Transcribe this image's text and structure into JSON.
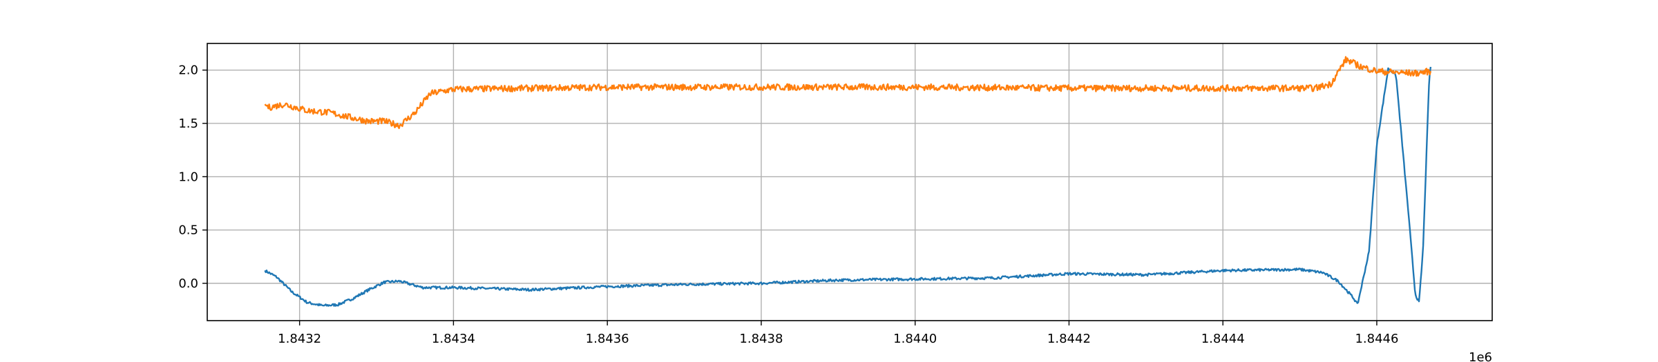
{
  "chart_data": {
    "type": "line",
    "title": "",
    "xlabel": "",
    "ylabel": "",
    "x_offset_label": "1e6",
    "xlim": [
      1.84308,
      1.84475
    ],
    "ylim": [
      -0.35,
      2.25
    ],
    "grid": true,
    "legend": "none",
    "x_ticks": [
      1.8432,
      1.8434,
      1.8436,
      1.8438,
      1.844,
      1.8442,
      1.8444,
      1.8446
    ],
    "x_tick_labels": [
      "1.8432",
      "1.8434",
      "1.8436",
      "1.8438",
      "1.8440",
      "1.8442",
      "1.8444",
      "1.8446"
    ],
    "y_ticks": [
      0.0,
      0.5,
      1.0,
      1.5,
      2.0
    ],
    "y_tick_labels": [
      "0.0",
      "0.5",
      "1.0",
      "1.5",
      "2.0"
    ],
    "series": [
      {
        "color": "#1f77b4",
        "noise": 0.012,
        "x": [
          1.843155,
          1.84317,
          1.84319,
          1.84321,
          1.84323,
          1.84325,
          1.84327,
          1.84329,
          1.84331,
          1.84333,
          1.84334,
          1.84336,
          1.8434,
          1.8435,
          1.8436,
          1.8437,
          1.8438,
          1.8439,
          1.844,
          1.8441,
          1.8442,
          1.8443,
          1.8444,
          1.8445,
          1.84453,
          1.84455,
          1.84457,
          1.844575,
          1.84459,
          1.8446,
          1.844615,
          1.844625,
          1.84464,
          1.84465,
          1.844655,
          1.84466,
          1.844665,
          1.844668,
          1.84467
        ],
        "y": [
          0.12,
          0.06,
          -0.08,
          -0.18,
          -0.21,
          -0.2,
          -0.14,
          -0.06,
          0.01,
          0.02,
          0.0,
          -0.04,
          -0.04,
          -0.06,
          -0.03,
          -0.01,
          0.0,
          0.03,
          0.04,
          0.05,
          0.09,
          0.08,
          0.12,
          0.13,
          0.1,
          0.02,
          -0.14,
          -0.2,
          0.3,
          1.3,
          2.02,
          1.95,
          0.75,
          -0.1,
          -0.18,
          0.3,
          1.3,
          1.9,
          2.03
        ]
      },
      {
        "color": "#ff7f0e",
        "noise": 0.03,
        "x": [
          1.843155,
          1.84316,
          1.84318,
          1.84321,
          1.84324,
          1.84327,
          1.84329,
          1.84331,
          1.84333,
          1.84335,
          1.84337,
          1.8434,
          1.8436,
          1.8438,
          1.844,
          1.8442,
          1.8444,
          1.84452,
          1.84454,
          1.84456,
          1.84458,
          1.8446,
          1.84462,
          1.84465,
          1.84467
        ],
        "y": [
          1.68,
          1.65,
          1.68,
          1.62,
          1.6,
          1.55,
          1.52,
          1.52,
          1.48,
          1.6,
          1.78,
          1.82,
          1.84,
          1.84,
          1.84,
          1.83,
          1.83,
          1.83,
          1.87,
          2.1,
          2.03,
          1.99,
          1.98,
          1.97,
          1.99
        ]
      }
    ]
  }
}
